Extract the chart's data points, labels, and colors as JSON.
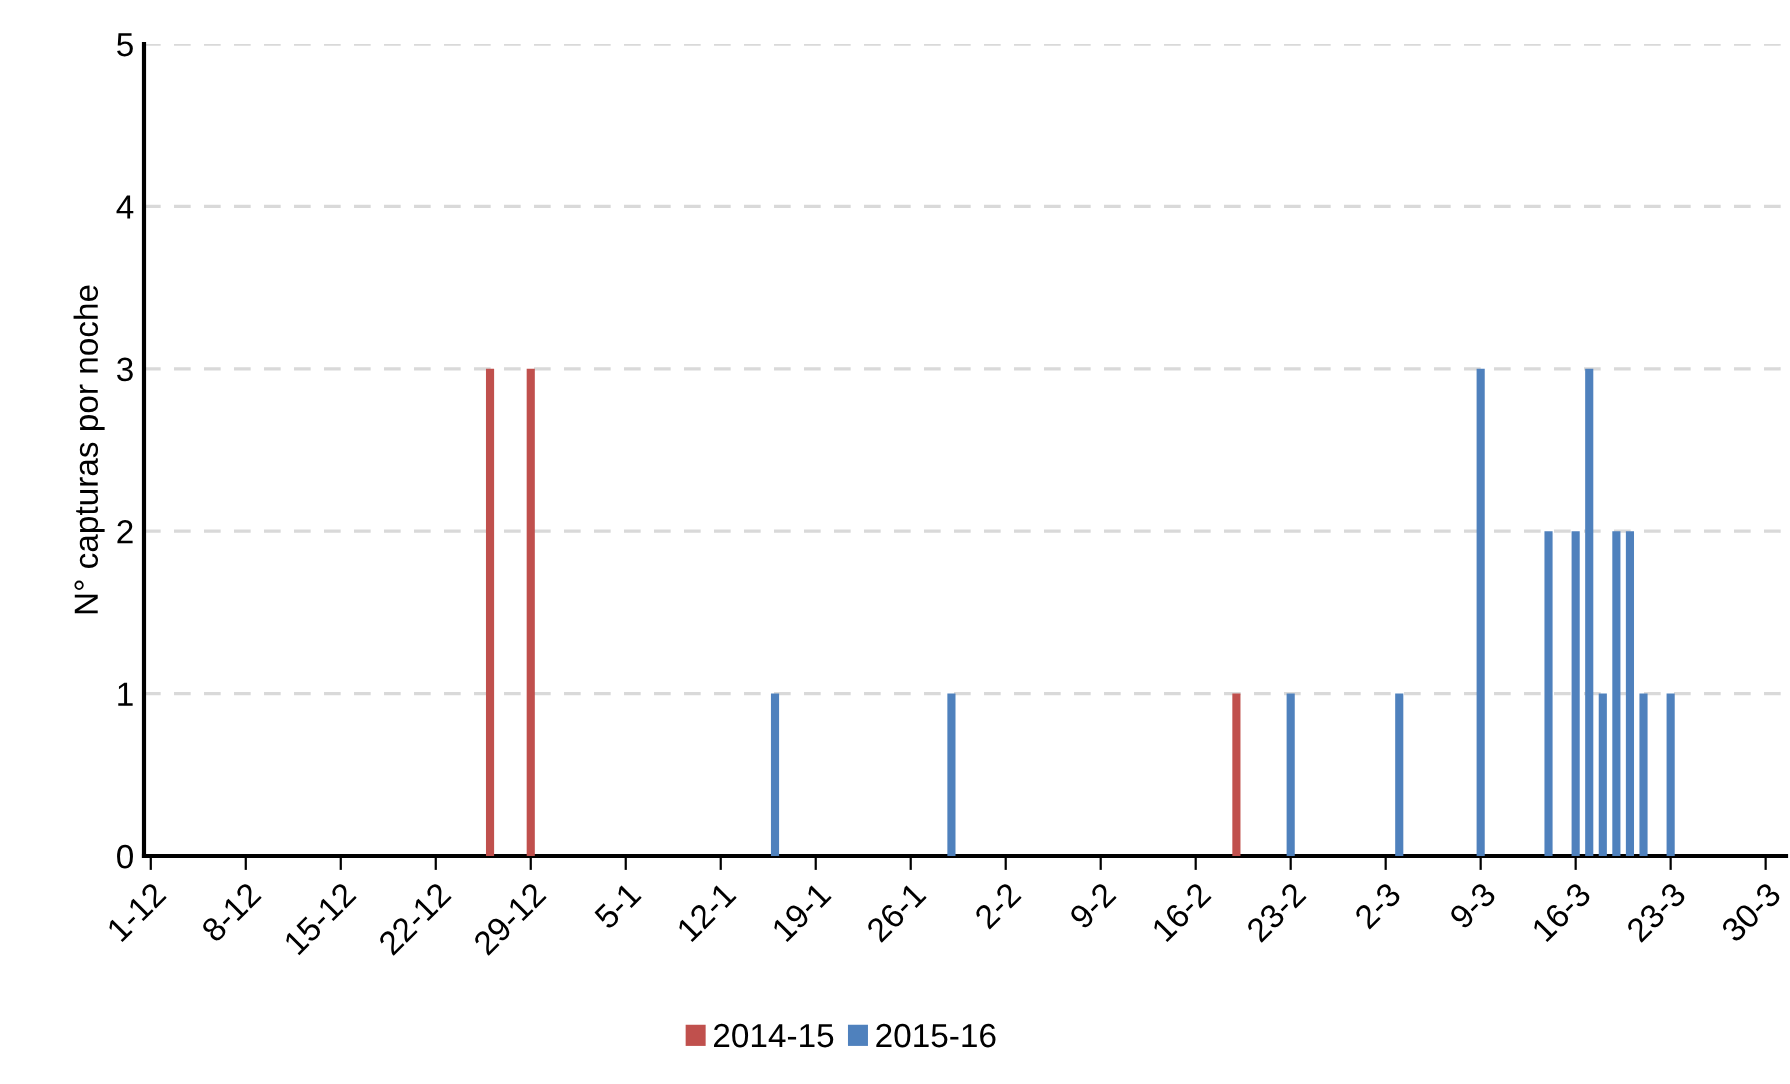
{
  "chart_data": {
    "type": "bar",
    "ylabel": "N° capturas por noche",
    "categories": [
      "1-12",
      null,
      null,
      null,
      null,
      null,
      null,
      "8-12",
      null,
      null,
      null,
      null,
      null,
      null,
      "15-12",
      null,
      null,
      null,
      null,
      null,
      null,
      "22-12",
      null,
      null,
      null,
      null,
      null,
      null,
      "29-12",
      null,
      null,
      null,
      null,
      null,
      null,
      "5-1",
      null,
      null,
      null,
      null,
      null,
      null,
      "12-1",
      null,
      null,
      null,
      null,
      null,
      null,
      "19-1",
      null,
      null,
      null,
      null,
      null,
      null,
      "26-1",
      null,
      null,
      null,
      null,
      null,
      null,
      "2-2",
      null,
      null,
      null,
      null,
      null,
      null,
      "9-2",
      null,
      null,
      null,
      null,
      null,
      null,
      "16-2",
      null,
      null,
      null,
      null,
      null,
      null,
      "23-2",
      null,
      null,
      null,
      null,
      null,
      null,
      "2-3",
      null,
      null,
      null,
      null,
      null,
      null,
      "9-3",
      null,
      null,
      null,
      null,
      null,
      null,
      "16-3",
      null,
      null,
      null,
      null,
      null,
      null,
      "23-3",
      null,
      null,
      null,
      null,
      null,
      null,
      "30-3",
      null
    ],
    "series": [
      {
        "name": "2014-15",
        "color": "#c0504d",
        "values": [
          null,
          null,
          null,
          null,
          null,
          null,
          null,
          null,
          null,
          null,
          null,
          null,
          null,
          null,
          null,
          null,
          null,
          null,
          null,
          null,
          null,
          null,
          null,
          null,
          null,
          3,
          null,
          null,
          3,
          null,
          null,
          null,
          null,
          null,
          null,
          null,
          null,
          null,
          null,
          null,
          null,
          null,
          null,
          null,
          null,
          null,
          null,
          null,
          null,
          null,
          null,
          null,
          null,
          null,
          null,
          null,
          null,
          null,
          null,
          null,
          null,
          null,
          null,
          null,
          null,
          null,
          null,
          null,
          null,
          null,
          null,
          null,
          null,
          null,
          null,
          null,
          null,
          null,
          null,
          null,
          1,
          null,
          null,
          null,
          null,
          null,
          null,
          null,
          null,
          null,
          null,
          null,
          null,
          null,
          null,
          null,
          null,
          null,
          null,
          null,
          null,
          null,
          null,
          null,
          null,
          null,
          null,
          null,
          null,
          null,
          null,
          null,
          null,
          null,
          null,
          null,
          null,
          null,
          null,
          null,
          null
        ]
      },
      {
        "name": "2015-16",
        "color": "#4f81bd",
        "values": [
          null,
          null,
          null,
          null,
          null,
          null,
          null,
          null,
          null,
          null,
          null,
          null,
          null,
          null,
          null,
          null,
          null,
          null,
          null,
          null,
          null,
          null,
          null,
          null,
          null,
          null,
          null,
          null,
          null,
          null,
          null,
          null,
          null,
          null,
          null,
          null,
          null,
          null,
          null,
          null,
          null,
          null,
          null,
          null,
          null,
          null,
          1,
          null,
          null,
          null,
          null,
          null,
          null,
          null,
          null,
          null,
          null,
          null,
          null,
          1,
          null,
          null,
          null,
          null,
          null,
          null,
          null,
          null,
          null,
          null,
          null,
          null,
          null,
          null,
          null,
          null,
          null,
          null,
          null,
          null,
          null,
          null,
          null,
          null,
          1,
          null,
          null,
          null,
          null,
          null,
          null,
          null,
          1,
          null,
          null,
          null,
          null,
          null,
          3,
          null,
          null,
          null,
          null,
          2,
          null,
          2,
          3,
          1,
          2,
          2,
          1,
          null,
          1,
          null,
          null,
          null,
          null,
          null,
          null,
          null,
          null
        ]
      }
    ],
    "ylim": [
      0,
      5
    ],
    "yticks": [
      0,
      1,
      2,
      3,
      4,
      5
    ],
    "grid": "y",
    "legend": "bottom"
  }
}
